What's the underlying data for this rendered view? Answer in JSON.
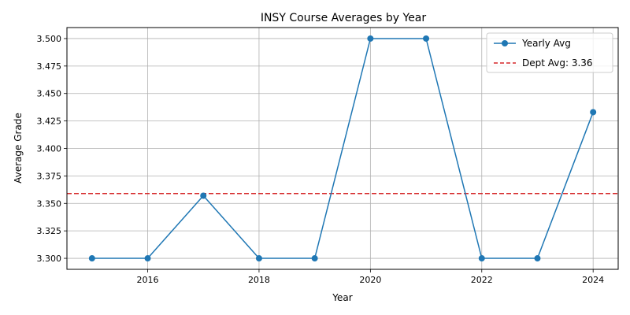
{
  "chart_data": {
    "type": "line",
    "title": "INSY Course Averages by Year",
    "xlabel": "Year",
    "ylabel": "Average Grade",
    "xlim": [
      2014.55,
      2024.45
    ],
    "ylim": [
      3.29,
      3.51
    ],
    "xticks": [
      2016,
      2018,
      2020,
      2022,
      2024
    ],
    "yticks": [
      3.3,
      3.325,
      3.35,
      3.375,
      3.4,
      3.425,
      3.45,
      3.475,
      3.5
    ],
    "grid": true,
    "legend_position": "upper-right",
    "series": [
      {
        "name": "Yearly Avg",
        "color": "#1f77b4",
        "marker": "circle",
        "x": [
          2015,
          2016,
          2017,
          2018,
          2019,
          2020,
          2021,
          2022,
          2023,
          2024
        ],
        "y": [
          3.3,
          3.3,
          3.357,
          3.3,
          3.3,
          3.5,
          3.5,
          3.3,
          3.3,
          3.433
        ]
      }
    ],
    "reference_line": {
      "name": "Dept Avg: 3.36",
      "value": 3.359,
      "color": "#d62728",
      "style": "dashed"
    }
  }
}
